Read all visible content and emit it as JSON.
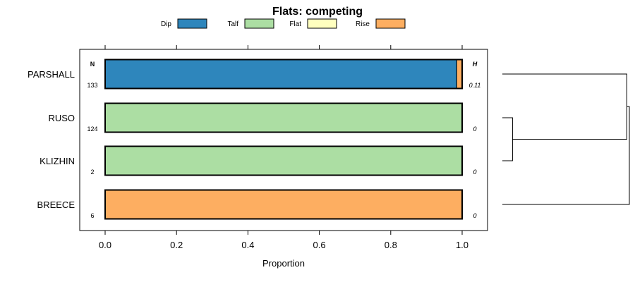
{
  "chart_data": {
    "type": "bar",
    "orientation": "horizontal",
    "stacked": true,
    "title": "Flats: competing",
    "xlabel": "Proportion",
    "xlim": [
      -0.05,
      1.07
    ],
    "xticks": [
      "0.0",
      "0.2",
      "0.4",
      "0.6",
      "0.8",
      "1.0"
    ],
    "legend": [
      {
        "name": "Dip",
        "color": "#2e86bc"
      },
      {
        "name": "Talf",
        "color": "#acdea3"
      },
      {
        "name": "Flat",
        "color": "#ffffbf"
      },
      {
        "name": "Rise",
        "color": "#fdae61"
      }
    ],
    "categories": [
      "PARSHALL",
      "RUSO",
      "KLIZHIN",
      "BREECE"
    ],
    "series": [
      {
        "name": "Dip",
        "values": [
          0.985,
          0,
          0,
          0
        ]
      },
      {
        "name": "Talf",
        "values": [
          0,
          1,
          1,
          0
        ]
      },
      {
        "name": "Flat",
        "values": [
          0,
          0,
          0,
          0
        ]
      },
      {
        "name": "Rise",
        "values": [
          0.015,
          0,
          0,
          1
        ]
      }
    ],
    "n_label": "N",
    "n_values": [
      "133",
      "124",
      "2",
      "6"
    ],
    "h_label": "H",
    "h_values": [
      "0.11",
      "0",
      "0",
      "0"
    ],
    "dendrogram": {
      "leaves": [
        "PARSHALL",
        "RUSO",
        "KLIZHIN",
        "BREECE"
      ],
      "merges": [
        {
          "left": "RUSO",
          "right": "KLIZHIN",
          "height": 0.08
        },
        {
          "left": "PARSHALL",
          "right": "RUSO+KLIZHIN",
          "height": 0.98
        },
        {
          "left": "PARSHALL+RUSO+KLIZHIN",
          "right": "BREECE",
          "height": 1.0
        }
      ]
    }
  }
}
